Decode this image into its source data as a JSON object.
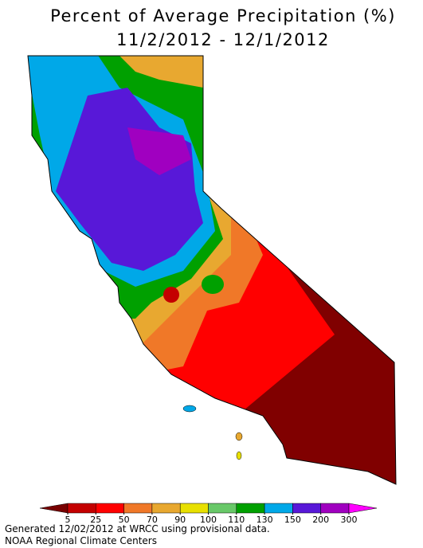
{
  "title": "Percent of Average Precipitation (%)",
  "subtitle": "11/2/2012 - 12/1/2012",
  "legend": {
    "ticks": [
      5,
      25,
      50,
      70,
      90,
      100,
      110,
      130,
      150,
      200,
      300
    ],
    "colors": [
      "#780000",
      "#c40000",
      "#ff0000",
      "#f07828",
      "#e8a830",
      "#e8e000",
      "#68c868",
      "#00a000",
      "#00a8e8",
      "#5818d8",
      "#a000c0",
      "#ff00ff"
    ]
  },
  "footer": [
    "Generated 12/02/2012 at WRCC using provisional data.",
    "NOAA Regional Climate Centers"
  ]
}
